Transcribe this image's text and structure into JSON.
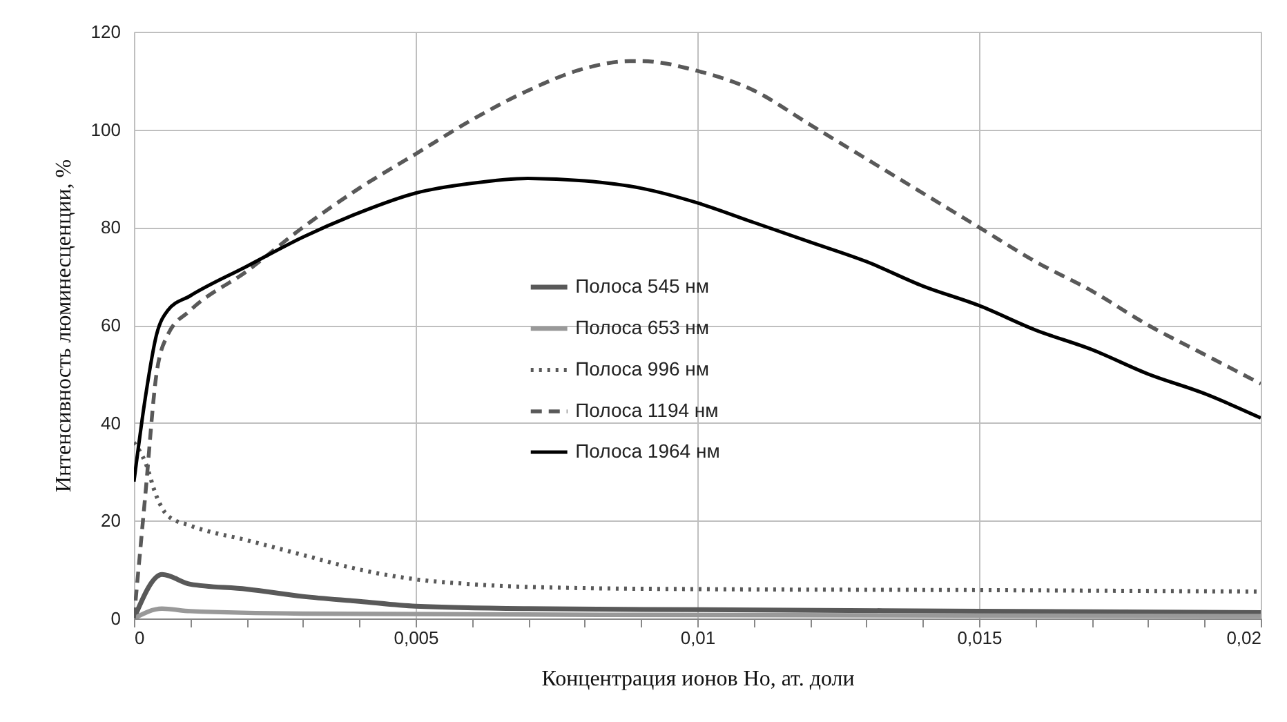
{
  "chart_data": {
    "type": "line",
    "xlabel": "Концентрация  ионов Ho, ат. доли",
    "ylabel": "Интенсивность люминесценции, %",
    "xlim": [
      0,
      0.02
    ],
    "xticks": [
      0,
      {
        "value": 0.001,
        "label": null
      },
      {
        "value": 0.002,
        "label": null
      },
      {
        "value": 0.003,
        "label": null
      },
      {
        "value": 0.004,
        "label": null
      },
      {
        "value": 0.005,
        "label": "0,005"
      },
      {
        "value": 0.006,
        "label": null
      },
      {
        "value": 0.007,
        "label": null
      },
      {
        "value": 0.008,
        "label": null
      },
      {
        "value": 0.009,
        "label": null
      },
      {
        "value": 0.01,
        "label": "0,01"
      },
      {
        "value": 0.011,
        "label": null
      },
      {
        "value": 0.012,
        "label": null
      },
      {
        "value": 0.013,
        "label": null
      },
      {
        "value": 0.014,
        "label": null
      },
      {
        "value": 0.015,
        "label": "0,015"
      },
      {
        "value": 0.016,
        "label": null
      },
      {
        "value": 0.017,
        "label": null
      },
      {
        "value": 0.018,
        "label": null
      },
      {
        "value": 0.019,
        "label": null
      },
      {
        "value": 0.02,
        "label": "0,02"
      }
    ],
    "ylim": [
      0,
      120
    ],
    "yticks": [
      0,
      20,
      40,
      60,
      80,
      100,
      120
    ],
    "grid": true,
    "legend": "center",
    "series": [
      {
        "name": "Полоса 545 нм",
        "color": "#595959",
        "line_style": "solid",
        "x": [
          0,
          0.0005,
          0.001,
          0.002,
          0.003,
          0.004,
          0.005,
          0.007,
          0.01,
          0.015,
          0.02
        ],
        "values": [
          0,
          9,
          7,
          6,
          4.5,
          3.5,
          2.5,
          2,
          1.8,
          1.5,
          1.2
        ]
      },
      {
        "name": "Полоса 653 нм",
        "color": "#999999",
        "line_style": "solid",
        "x": [
          0,
          0.0005,
          0.001,
          0.003,
          0.01,
          0.02
        ],
        "values": [
          0,
          2,
          1.5,
          1,
          0.7,
          0.5
        ]
      },
      {
        "name": "Полоса 996 нм",
        "color": "#595959",
        "line_style": "dotted",
        "x": [
          0,
          0.0002,
          0.0004,
          0.0006,
          0.001,
          0.002,
          0.003,
          0.004,
          0.005,
          0.006,
          0.008,
          0.01,
          0.015,
          0.02
        ],
        "values": [
          36,
          32,
          25,
          21,
          19,
          16,
          13,
          10,
          8,
          7,
          6.2,
          6,
          5.8,
          5.5
        ]
      },
      {
        "name": "Полоса 1194 нм",
        "color": "#595959",
        "line_style": "dashed",
        "x": [
          0,
          0.0002,
          0.0004,
          0.0006,
          0.001,
          0.002,
          0.003,
          0.004,
          0.005,
          0.006,
          0.007,
          0.008,
          0.0088,
          0.009,
          0.01,
          0.011,
          0.012,
          0.013,
          0.014,
          0.015,
          0.016,
          0.017,
          0.018,
          0.019,
          0.02
        ],
        "values": [
          0,
          25,
          50,
          58,
          63,
          71,
          80,
          88,
          95,
          102,
          108,
          112.5,
          114,
          114,
          112,
          108,
          101,
          94,
          87,
          80,
          73,
          67,
          60,
          54,
          48
        ]
      },
      {
        "name": "Полоса 1964 нм",
        "color": "#000000",
        "line_style": "solid",
        "x": [
          0,
          0.0002,
          0.0004,
          0.0006,
          0.001,
          0.002,
          0.003,
          0.004,
          0.005,
          0.006,
          0.007,
          0.008,
          0.009,
          0.01,
          0.011,
          0.012,
          0.013,
          0.014,
          0.015,
          0.016,
          0.017,
          0.018,
          0.019,
          0.02
        ],
        "values": [
          28,
          45,
          58,
          63,
          66,
          72,
          78,
          83,
          87,
          89,
          90,
          89.5,
          88,
          85,
          81,
          77,
          73,
          68,
          64,
          59,
          55,
          50,
          46,
          41
        ]
      }
    ]
  }
}
